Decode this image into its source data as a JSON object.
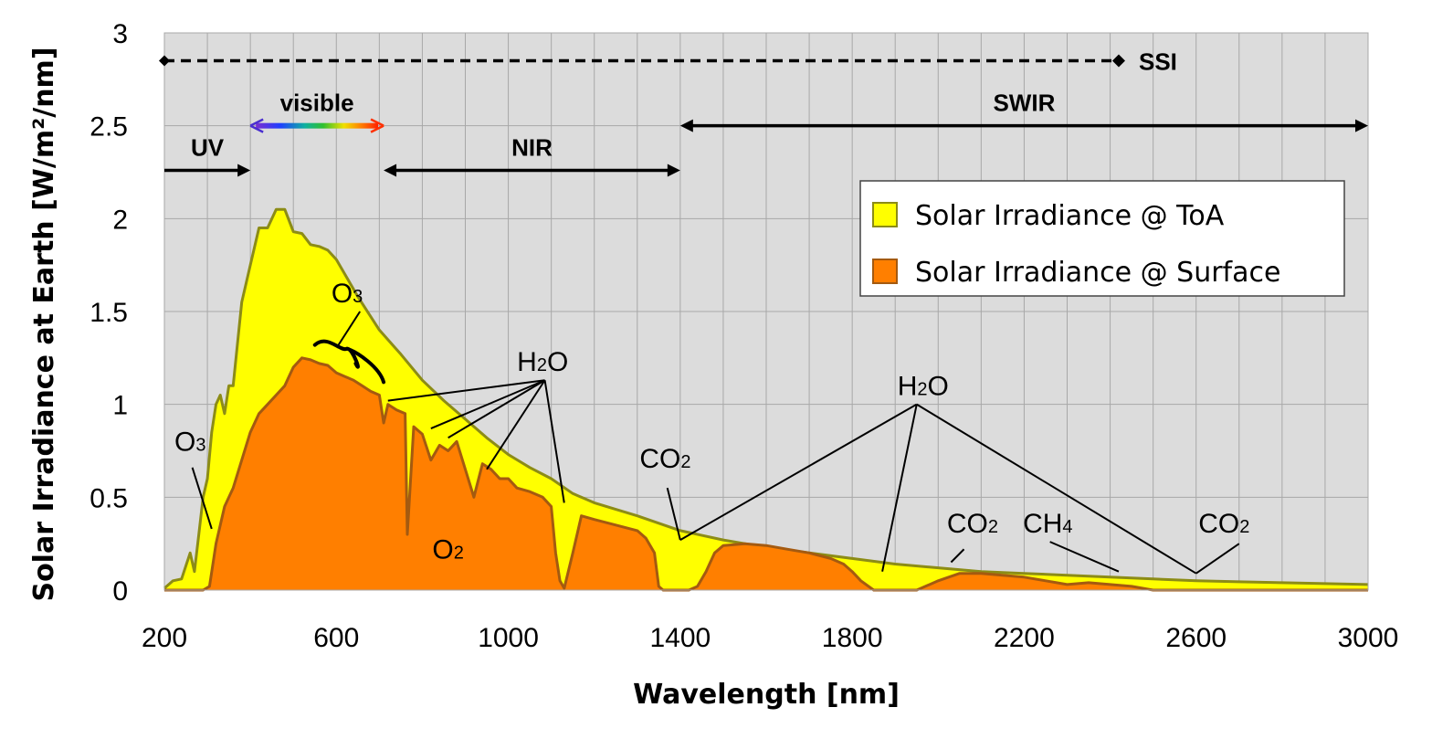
{
  "chart_data": {
    "type": "area",
    "xlabel": "Wavelength [nm]",
    "ylabel": "Solar Irradiance at Earth [W/m²/nm]",
    "xlim": [
      200,
      3000
    ],
    "ylim": [
      0,
      3
    ],
    "x_ticks": [
      "200",
      "600",
      "1000",
      "1400",
      "1800",
      "2200",
      "2600",
      "3000"
    ],
    "y_ticks": [
      "0",
      "0.5",
      "1",
      "1.5",
      "2",
      "2.5",
      "3"
    ],
    "grid": true,
    "legend_position": "right",
    "series": [
      {
        "name": "Solar Irradiance @ ToA",
        "fill": "#ffff00",
        "stroke": "#8c8c16",
        "x": [
          200,
          220,
          240,
          260,
          270,
          280,
          290,
          300,
          310,
          320,
          330,
          340,
          350,
          360,
          380,
          400,
          420,
          440,
          460,
          480,
          500,
          520,
          540,
          560,
          580,
          600,
          650,
          700,
          750,
          800,
          850,
          900,
          950,
          1000,
          1050,
          1100,
          1150,
          1200,
          1300,
          1400,
          1500,
          1600,
          1700,
          1800,
          1900,
          2000,
          2100,
          2200,
          2300,
          2400,
          2500,
          2600,
          2700,
          2800,
          2900,
          3000
        ],
        "y": [
          0.01,
          0.05,
          0.06,
          0.2,
          0.1,
          0.3,
          0.5,
          0.6,
          0.85,
          1.0,
          1.05,
          0.95,
          1.1,
          1.1,
          1.55,
          1.75,
          1.95,
          1.95,
          2.05,
          2.05,
          1.93,
          1.92,
          1.86,
          1.85,
          1.83,
          1.78,
          1.58,
          1.4,
          1.27,
          1.13,
          1.02,
          0.92,
          0.82,
          0.73,
          0.66,
          0.6,
          0.52,
          0.47,
          0.4,
          0.32,
          0.27,
          0.23,
          0.2,
          0.17,
          0.14,
          0.12,
          0.1,
          0.09,
          0.08,
          0.07,
          0.06,
          0.05,
          0.045,
          0.04,
          0.035,
          0.03
        ]
      },
      {
        "name": "Solar Irradiance @ Surface",
        "fill": "#ff7f00",
        "stroke": "#a45a10",
        "x": [
          200,
          290,
          305,
          320,
          340,
          360,
          380,
          400,
          420,
          440,
          460,
          480,
          500,
          520,
          540,
          560,
          580,
          600,
          620,
          640,
          660,
          680,
          700,
          710,
          720,
          740,
          760,
          765,
          780,
          800,
          820,
          840,
          860,
          880,
          900,
          920,
          940,
          960,
          980,
          1000,
          1020,
          1050,
          1080,
          1100,
          1110,
          1120,
          1130,
          1150,
          1170,
          1200,
          1250,
          1300,
          1320,
          1340,
          1350,
          1360,
          1390,
          1400,
          1420,
          1440,
          1460,
          1480,
          1500,
          1550,
          1600,
          1650,
          1700,
          1750,
          1780,
          1800,
          1820,
          1850,
          1950,
          2000,
          2050,
          2100,
          2150,
          2200,
          2250,
          2300,
          2350,
          2400,
          2450,
          2500,
          2550,
          2600,
          2700,
          2800,
          2900,
          3000
        ],
        "y": [
          0,
          0,
          0.02,
          0.25,
          0.45,
          0.55,
          0.7,
          0.85,
          0.95,
          1.0,
          1.05,
          1.1,
          1.2,
          1.25,
          1.24,
          1.22,
          1.21,
          1.17,
          1.15,
          1.13,
          1.1,
          1.07,
          1.05,
          0.9,
          1.0,
          0.97,
          0.95,
          0.3,
          0.88,
          0.84,
          0.7,
          0.78,
          0.75,
          0.8,
          0.65,
          0.5,
          0.68,
          0.65,
          0.6,
          0.6,
          0.55,
          0.53,
          0.5,
          0.45,
          0.2,
          0.05,
          0.01,
          0.2,
          0.4,
          0.38,
          0.35,
          0.32,
          0.28,
          0.2,
          0.02,
          0.0,
          0.0,
          0.0,
          0.0,
          0.02,
          0.1,
          0.2,
          0.24,
          0.25,
          0.24,
          0.22,
          0.2,
          0.17,
          0.14,
          0.1,
          0.05,
          0.0,
          0.0,
          0.05,
          0.09,
          0.09,
          0.08,
          0.07,
          0.05,
          0.03,
          0.04,
          0.03,
          0.02,
          0.0,
          0.0,
          0.0,
          0.0,
          0.0,
          0.0,
          0.0
        ]
      }
    ],
    "annotations": [
      {
        "text": "O₃",
        "base": "O",
        "sub": "3",
        "x": 625,
        "y": 1.55
      },
      {
        "text": "O₃",
        "base": "O",
        "sub": "3",
        "x": 260,
        "y": 0.75
      },
      {
        "text": "H₂O",
        "base": "H",
        "sub": "2",
        "tail": "O",
        "x": 1080,
        "y": 1.18
      },
      {
        "text": "O₂",
        "base": "O",
        "sub": "2",
        "x": 860,
        "y": 0.17
      },
      {
        "text": "CO₂",
        "base": "CO",
        "sub": "2",
        "x": 1365,
        "y": 0.66
      },
      {
        "text": "H₂O",
        "base": "H",
        "sub": "2",
        "tail": "O",
        "x": 1965,
        "y": 1.05
      },
      {
        "text": "CO₂",
        "base": "CO",
        "sub": "2",
        "x": 2080,
        "y": 0.31
      },
      {
        "text": "CH₄",
        "base": "CH",
        "sub": "4",
        "x": 2255,
        "y": 0.31
      },
      {
        "text": "CO₂",
        "base": "CO",
        "sub": "2",
        "x": 2665,
        "y": 0.31
      }
    ],
    "leader_lines": [
      {
        "from": [
          605,
          1.32
        ],
        "to": [
          655,
          1.5
        ]
      },
      {
        "from": [
          265,
          0.66
        ],
        "to": [
          310,
          0.33
        ]
      },
      {
        "from": [
          1085,
          1.13
        ],
        "to": [
          720,
          1.02
        ]
      },
      {
        "from": [
          1085,
          1.13
        ],
        "to": [
          820,
          0.87
        ]
      },
      {
        "from": [
          1085,
          1.13
        ],
        "to": [
          860,
          0.82
        ]
      },
      {
        "from": [
          1085,
          1.13
        ],
        "to": [
          950,
          0.65
        ]
      },
      {
        "from": [
          1085,
          1.13
        ],
        "to": [
          1130,
          0.47
        ]
      },
      {
        "from": [
          1370,
          0.55
        ],
        "to": [
          1400,
          0.27
        ]
      },
      {
        "from": [
          1950,
          1.0
        ],
        "to": [
          1400,
          0.27
        ]
      },
      {
        "from": [
          1950,
          1.0
        ],
        "to": [
          1870,
          0.1
        ]
      },
      {
        "from": [
          1950,
          1.0
        ],
        "to": [
          2600,
          0.09
        ]
      },
      {
        "from": [
          2060,
          0.22
        ],
        "to": [
          2030,
          0.15
        ]
      },
      {
        "from": [
          2260,
          0.26
        ],
        "to": [
          2420,
          0.1
        ]
      },
      {
        "from": [
          2600,
          0.09
        ],
        "to": [
          2700,
          0.25
        ]
      }
    ],
    "bands": [
      {
        "label": "UV",
        "from": 200,
        "to": 400,
        "y": 2.26,
        "arrows": "end"
      },
      {
        "label": "visible",
        "from": 400,
        "to": 710,
        "y": 2.5,
        "arrows": "both",
        "gradient": true
      },
      {
        "label": "NIR",
        "from": 710,
        "to": 1400,
        "y": 2.26,
        "arrows": "both"
      },
      {
        "label": "SWIR",
        "from": 1400,
        "to": 3000,
        "y": 2.5,
        "arrows": "both"
      }
    ],
    "ssi": {
      "label": "SSI",
      "from": 200,
      "to": 2420,
      "y": 2.85,
      "dashed": true
    },
    "colors": {
      "plot_bg": "#dcdcdc",
      "grid": "#a8a8a8",
      "toa_fill": "#ffff00",
      "surface_fill": "#ff7f00"
    }
  }
}
